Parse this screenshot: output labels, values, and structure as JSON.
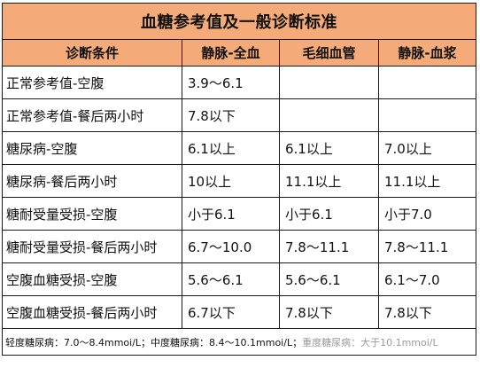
{
  "table": {
    "title": "血糖参考值及一般诊断标准",
    "headers": [
      "诊断条件",
      "静脉-全血",
      "毛细血管",
      "静脉-血浆"
    ],
    "rows": [
      {
        "condition": "正常参考值-空腹",
        "venous_whole": "3.9～6.1",
        "capillary": "",
        "venous_plasma": ""
      },
      {
        "condition": "正常参考值-餐后两小时",
        "venous_whole": "7.8以下",
        "capillary": "",
        "venous_plasma": ""
      },
      {
        "condition": "糖尿病-空腹",
        "venous_whole": "6.1以上",
        "capillary": "6.1以上",
        "venous_plasma": "7.0以上"
      },
      {
        "condition": "糖尿病-餐后两小时",
        "venous_whole": "10以上",
        "capillary": "11.1以上",
        "venous_plasma": "11.1以上"
      },
      {
        "condition": "糖耐受量受损-空腹",
        "venous_whole": "小于6.1",
        "capillary": "小于6.1",
        "venous_plasma": "小于7.0"
      },
      {
        "condition": "糖耐受量受损-餐后两小时",
        "venous_whole": "6.7～10.0",
        "capillary": "7.8～11.1",
        "venous_plasma": "7.8～11.1"
      },
      {
        "condition": "空腹血糖受损-空腹",
        "venous_whole": "5.6～6.1",
        "capillary": "5.6～6.1",
        "venous_plasma": "6.1～7.0"
      },
      {
        "condition": "空腹血糖受损-餐后两小时",
        "venous_whole": "6.7以下",
        "capillary": "7.8以下",
        "venous_plasma": "7.8以下"
      }
    ],
    "footnote": "轻度糖尿病：7.0～8.4mmoi/L；中度糖尿病：8.4～10.1mmoi/L；",
    "footnote_tail": "重度糖尿病：大于10.1mmoi/L"
  }
}
